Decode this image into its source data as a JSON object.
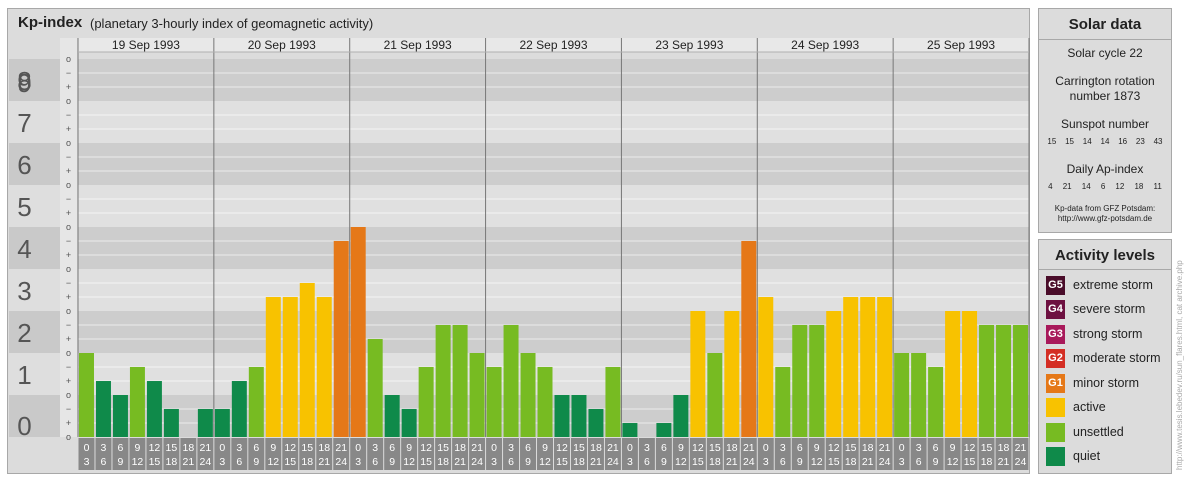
{
  "header": {
    "title": "Kp-index",
    "subtitle": "(planetary 3-hourly index of geomagnetic activity)"
  },
  "chart_data": {
    "type": "bar",
    "ylim": [
      0,
      9
    ],
    "y_ticks": [
      "0",
      "1",
      "2",
      "3",
      "4",
      "5",
      "6",
      "7",
      "8",
      "9"
    ],
    "sub_ticks": [
      "+",
      "o",
      "−"
    ],
    "days": [
      "19 Sep 1993",
      "20 Sep 1993",
      "21 Sep 1993",
      "22 Sep 1993",
      "23 Sep 1993",
      "24 Sep 1993",
      "25 Sep 1993"
    ],
    "interval_start_hours": [
      "0",
      "3",
      "6",
      "9",
      "12",
      "15",
      "18",
      "21"
    ],
    "interval_end_hours": [
      "3",
      "6",
      "9",
      "12",
      "15",
      "18",
      "21",
      "24"
    ],
    "values": [
      2,
      1.333,
      1,
      1.667,
      1.333,
      0.667,
      0,
      0.667,
      0.667,
      1.333,
      1.667,
      3.333,
      3.333,
      3.667,
      3.333,
      4.667,
      5,
      2.333,
      1,
      0.667,
      1.667,
      2.667,
      2.667,
      2,
      1.667,
      2.667,
      2,
      1.667,
      1,
      1,
      0.667,
      1.667,
      0.333,
      0,
      0.333,
      1,
      3,
      2,
      3,
      4.667,
      3.333,
      1.667,
      2.667,
      2.667,
      3,
      3.333,
      3.333,
      3.333,
      2,
      2,
      1.667,
      3,
      3,
      2.667,
      2.667,
      2.667
    ],
    "colors": {
      "quiet": "#0f8a4a",
      "unsettled": "#77bb22",
      "active": "#f8c200",
      "minor_storm": "#e57818"
    },
    "thresholds": {
      "unsettled": 1.5,
      "active": 3.0,
      "minor_storm": 4.5
    }
  },
  "solar": {
    "title": "Solar data",
    "cycle": "Solar cycle 22",
    "carrington_line1": "Carrington rotation",
    "carrington_line2": "number 1873",
    "sunspot_label": "Sunspot number",
    "sunspot_values": [
      "15",
      "15",
      "14",
      "14",
      "16",
      "23",
      "43"
    ],
    "ap_label": "Daily Ap-index",
    "ap_values": [
      "4",
      "21",
      "14",
      "6",
      "12",
      "18",
      "11"
    ],
    "source_line1": "Kp-data from GFZ Potsdam:",
    "source_line2": "http://www.gfz-potsdam.de"
  },
  "activity": {
    "title": "Activity levels",
    "levels": [
      {
        "code": "G5",
        "label": "extreme storm",
        "color": "#4a0d2a"
      },
      {
        "code": "G4",
        "label": "severe storm",
        "color": "#6d1040"
      },
      {
        "code": "G3",
        "label": "strong storm",
        "color": "#a8195a"
      },
      {
        "code": "G2",
        "label": "moderate storm",
        "color": "#d42e24"
      },
      {
        "code": "G1",
        "label": "minor storm",
        "color": "#e57818"
      },
      {
        "code": "",
        "label": "active",
        "color": "#f8c200"
      },
      {
        "code": "",
        "label": "unsettled",
        "color": "#77bb22"
      },
      {
        "code": "",
        "label": "quiet",
        "color": "#0f8a4a"
      }
    ]
  },
  "watermark": "http://www.tesis.lebedev.ru/sun_flares.html, cat archive.php"
}
